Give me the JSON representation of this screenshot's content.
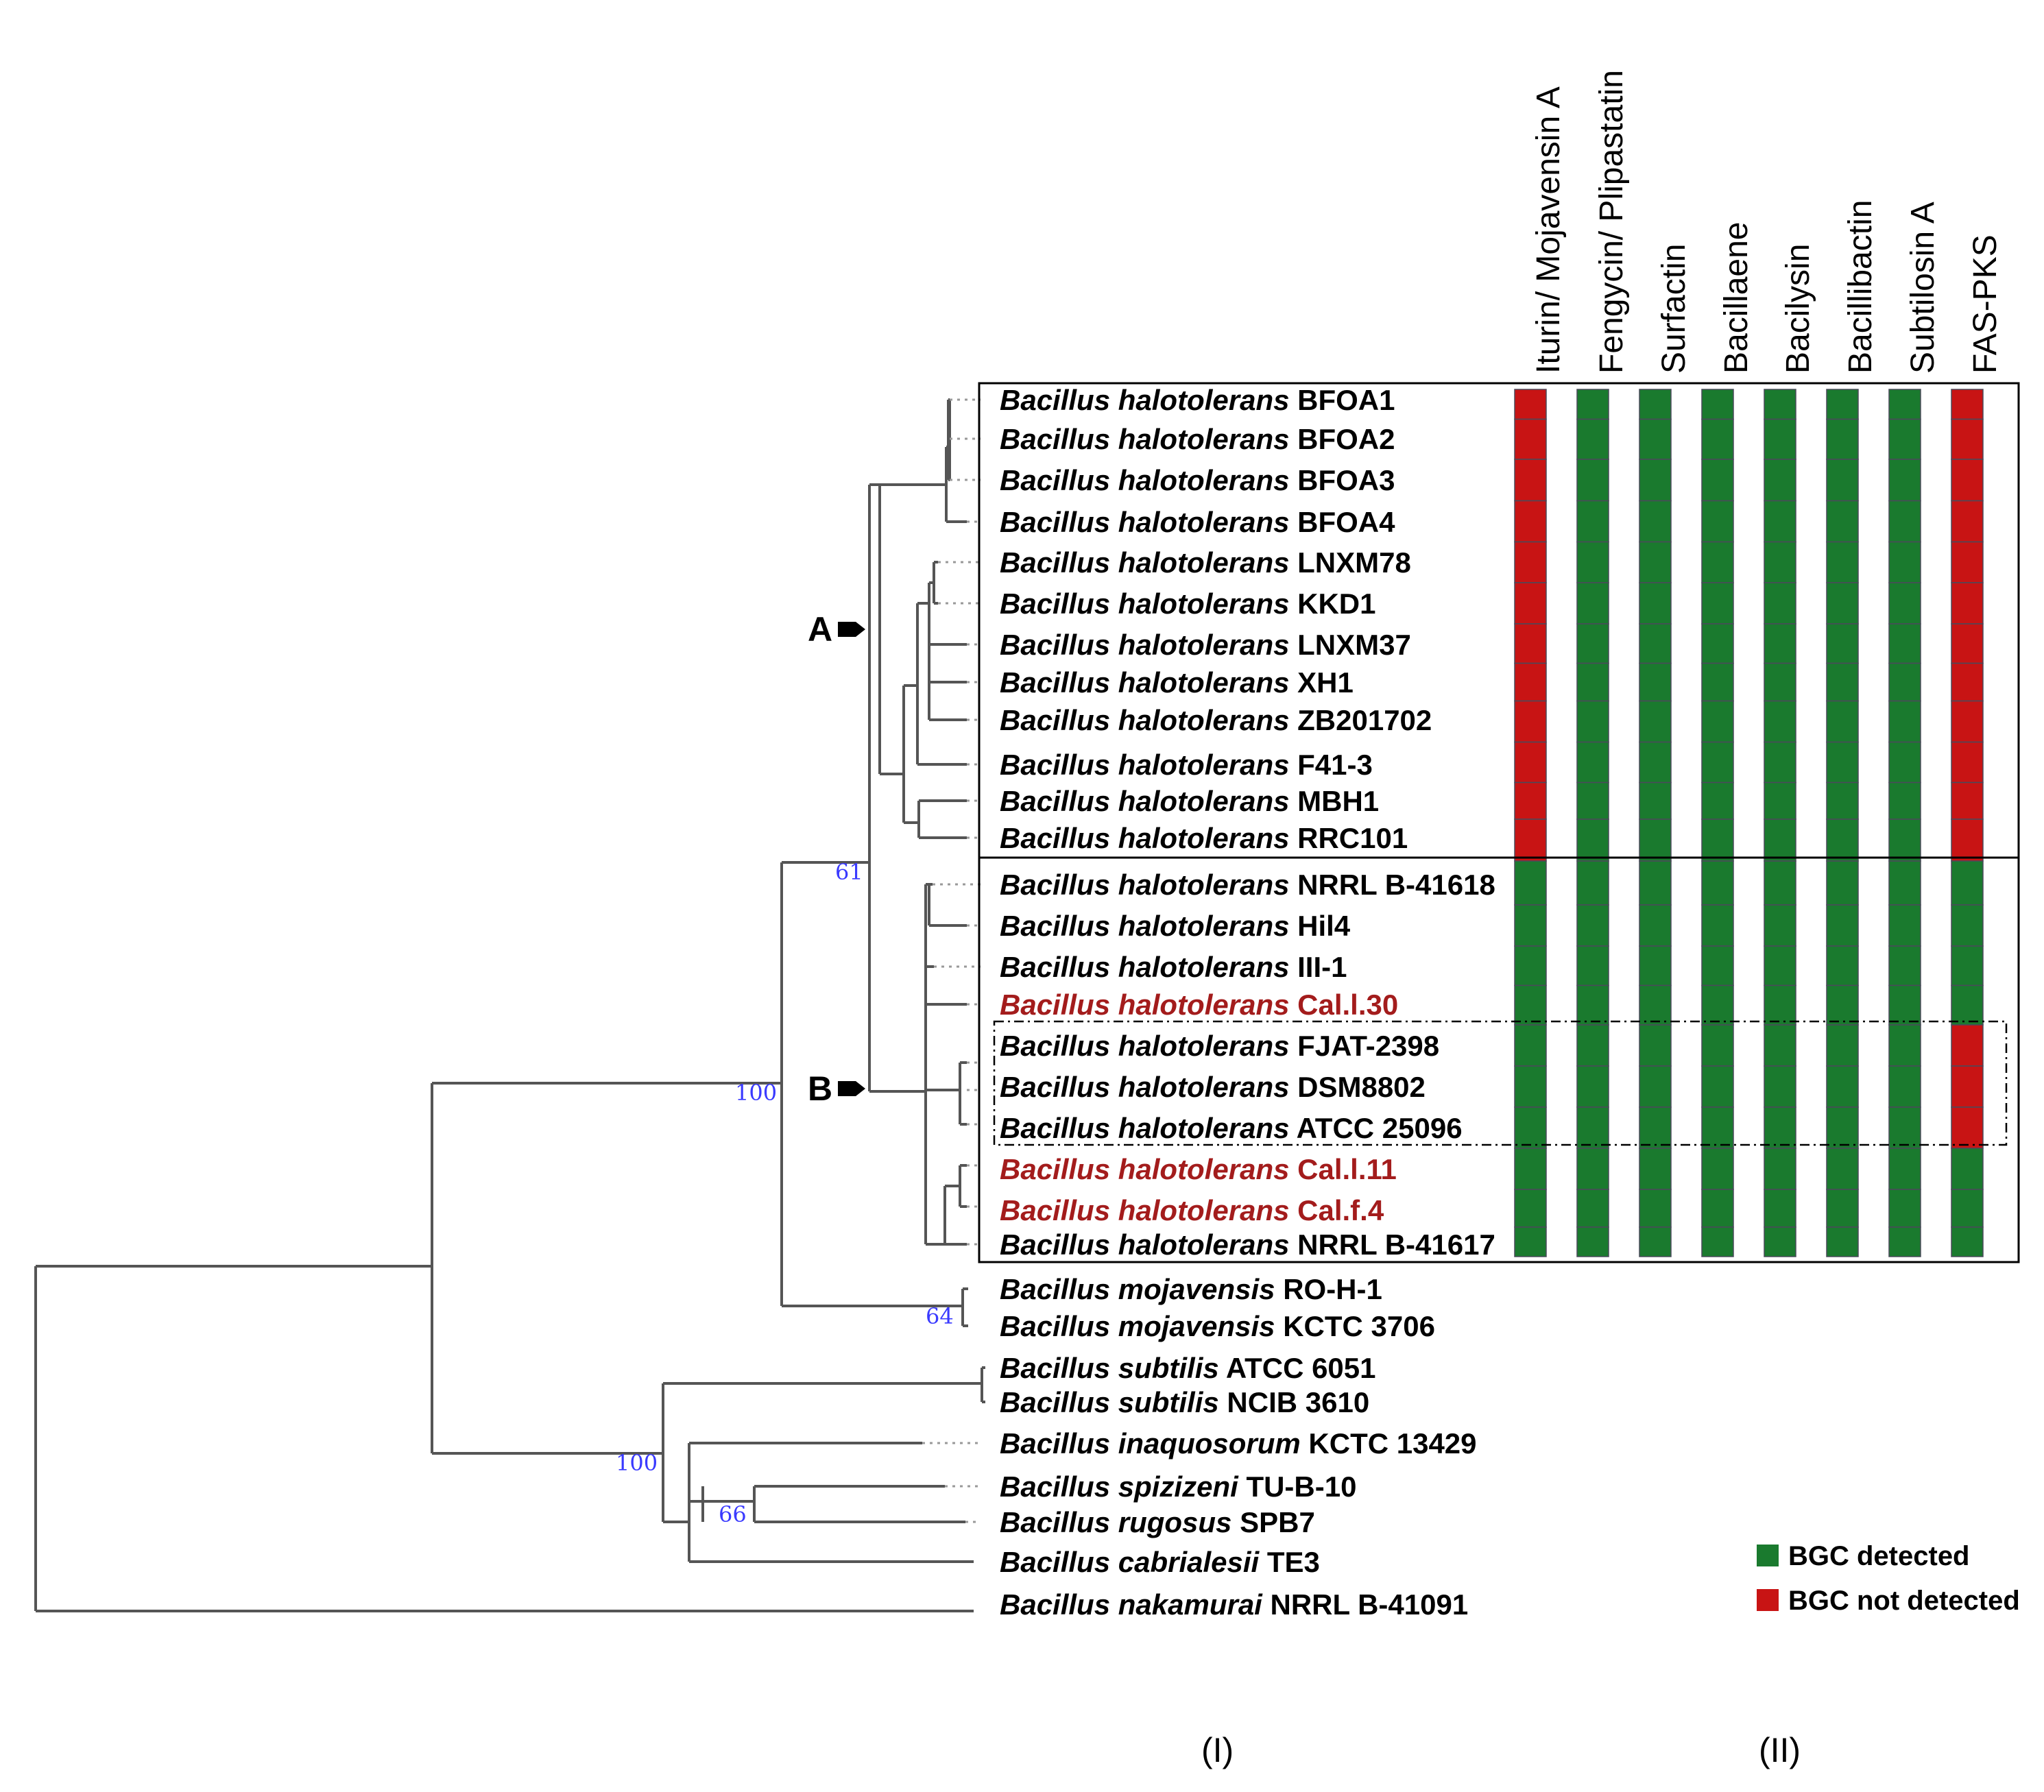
{
  "bgc_columns": [
    "Iturin/ Mojavensin A",
    "Fengycin/ Plipastatin",
    "Surfactin",
    "Bacillaene",
    "Bacilysin",
    "Bacillibactin",
    "Subtilosin A",
    "FAS-PKS"
  ],
  "taxa": [
    {
      "species": "Bacillus halotolerans",
      "strain": "BFOA1",
      "highlight": false,
      "bgc": [
        0,
        1,
        1,
        1,
        1,
        1,
        1,
        0
      ]
    },
    {
      "species": "Bacillus halotolerans",
      "strain": "BFOA2",
      "highlight": false,
      "bgc": [
        0,
        1,
        1,
        1,
        1,
        1,
        1,
        0
      ]
    },
    {
      "species": "Bacillus halotolerans",
      "strain": "BFOA3",
      "highlight": false,
      "bgc": [
        0,
        1,
        1,
        1,
        1,
        1,
        1,
        0
      ]
    },
    {
      "species": "Bacillus halotolerans",
      "strain": "BFOA4",
      "highlight": false,
      "bgc": [
        0,
        1,
        1,
        1,
        1,
        1,
        1,
        0
      ]
    },
    {
      "species": "Bacillus halotolerans",
      "strain": "LNXM78",
      "highlight": false,
      "bgc": [
        0,
        1,
        1,
        1,
        1,
        1,
        1,
        0
      ]
    },
    {
      "species": "Bacillus halotolerans",
      "strain": "KKD1",
      "highlight": false,
      "bgc": [
        0,
        1,
        1,
        1,
        1,
        1,
        1,
        0
      ]
    },
    {
      "species": "Bacillus halotolerans",
      "strain": "LNXM37",
      "highlight": false,
      "bgc": [
        0,
        1,
        1,
        1,
        1,
        1,
        1,
        0
      ]
    },
    {
      "species": "Bacillus halotolerans",
      "strain": "XH1",
      "highlight": false,
      "bgc": [
        0,
        1,
        1,
        1,
        1,
        1,
        1,
        0
      ]
    },
    {
      "species": "Bacillus halotolerans",
      "strain": "ZB201702",
      "highlight": false,
      "bgc": [
        0,
        1,
        1,
        1,
        1,
        1,
        1,
        0
      ]
    },
    {
      "species": "Bacillus halotolerans",
      "strain": "F41-3",
      "highlight": false,
      "bgc": [
        0,
        1,
        1,
        1,
        1,
        1,
        1,
        0
      ]
    },
    {
      "species": "Bacillus halotolerans",
      "strain": "MBH1",
      "highlight": false,
      "bgc": [
        0,
        1,
        1,
        1,
        1,
        1,
        1,
        0
      ]
    },
    {
      "species": "Bacillus halotolerans",
      "strain": "RRC101",
      "highlight": false,
      "bgc": [
        0,
        1,
        1,
        1,
        1,
        1,
        1,
        0
      ]
    },
    {
      "species": "Bacillus halotolerans",
      "strain": "NRRL B-41618",
      "highlight": false,
      "bgc": [
        1,
        1,
        1,
        1,
        1,
        1,
        1,
        1
      ]
    },
    {
      "species": "Bacillus halotolerans",
      "strain": "Hil4",
      "highlight": false,
      "bgc": [
        1,
        1,
        1,
        1,
        1,
        1,
        1,
        1
      ]
    },
    {
      "species": "Bacillus halotolerans",
      "strain": "III-1",
      "highlight": false,
      "bgc": [
        1,
        1,
        1,
        1,
        1,
        1,
        1,
        1
      ]
    },
    {
      "species": "Bacillus halotolerans",
      "strain": "Cal.l.30",
      "highlight": true,
      "bgc": [
        1,
        1,
        1,
        1,
        1,
        1,
        1,
        1
      ]
    },
    {
      "species": "Bacillus halotolerans",
      "strain": "FJAT-2398",
      "highlight": false,
      "bgc": [
        1,
        1,
        1,
        1,
        1,
        1,
        1,
        0
      ]
    },
    {
      "species": "Bacillus halotolerans",
      "strain": "DSM8802",
      "highlight": false,
      "bgc": [
        1,
        1,
        1,
        1,
        1,
        1,
        1,
        0
      ]
    },
    {
      "species": "Bacillus halotolerans",
      "strain": "ATCC 25096",
      "highlight": false,
      "bgc": [
        1,
        1,
        1,
        1,
        1,
        1,
        1,
        0
      ]
    },
    {
      "species": "Bacillus halotolerans",
      "strain": "Cal.l.11",
      "highlight": true,
      "bgc": [
        1,
        1,
        1,
        1,
        1,
        1,
        1,
        1
      ]
    },
    {
      "species": "Bacillus halotolerans",
      "strain": "Cal.f.4",
      "highlight": true,
      "bgc": [
        1,
        1,
        1,
        1,
        1,
        1,
        1,
        1
      ]
    },
    {
      "species": "Bacillus halotolerans",
      "strain": "NRRL B-41617",
      "highlight": false,
      "bgc": [
        1,
        1,
        1,
        1,
        1,
        1,
        1,
        1
      ]
    },
    {
      "species": "Bacillus mojavensis",
      "strain": "RO-H-1",
      "highlight": false
    },
    {
      "species": "Bacillus mojavensis",
      "strain": "KCTC 3706",
      "highlight": false
    },
    {
      "species": "Bacillus subtilis",
      "strain": "ATCC 6051",
      "highlight": false
    },
    {
      "species": "Bacillus subtilis",
      "strain": "NCIB 3610",
      "highlight": false
    },
    {
      "species": "Bacillus inaquosorum",
      "strain": "KCTC 13429",
      "highlight": false
    },
    {
      "species": "Bacillus spizizeni",
      "strain": "TU-B-10",
      "highlight": false
    },
    {
      "species": "Bacillus rugosus",
      "strain": "SPB7",
      "highlight": false
    },
    {
      "species": "Bacillus cabrialesii",
      "strain": "TE3",
      "highlight": false
    },
    {
      "species": "Bacillus nakamurai",
      "strain": "NRRL B-41091",
      "highlight": false
    }
  ],
  "bootstrap": {
    "clade_ab": "61",
    "halotolerans": "100",
    "mojavensis": "64",
    "subtilis_group": "100",
    "spizizeni_rugosus": "66"
  },
  "clades": {
    "a": "A",
    "b": "B"
  },
  "legend": {
    "detected": "BGC detected",
    "not_detected": "BGC not detected"
  },
  "colors": {
    "detected": "#1a7a2e",
    "not_detected": "#c81414",
    "highlight_text": "#a31c1c",
    "bootstrap": "#3a3aff"
  },
  "panels": {
    "left": "(I)",
    "right": "(II)"
  }
}
